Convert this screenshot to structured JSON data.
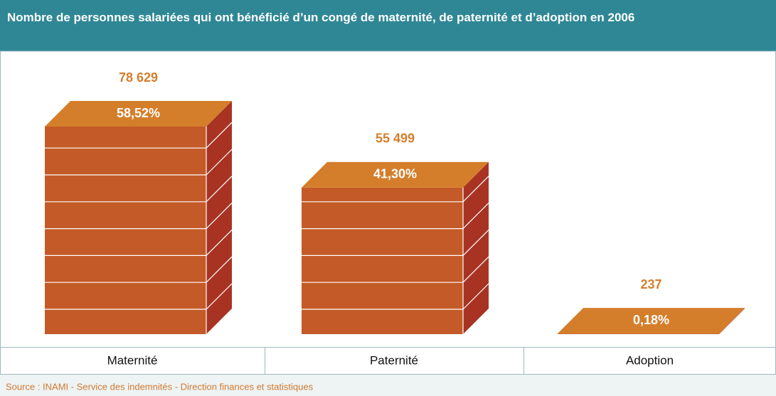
{
  "chart_data": {
    "type": "bar3d",
    "title": "Nombre de personnes salariées qui ont bénéficié d’un congé de maternité, de paternité et d’adoption en 2006",
    "categories": [
      "Maternité",
      "Paternité",
      "Adoption"
    ],
    "values": [
      78629,
      55499,
      237
    ],
    "value_labels": [
      "78 629",
      "55 499",
      "237"
    ],
    "shares": [
      58.52,
      41.3,
      0.18
    ],
    "share_labels": [
      "58,52%",
      "41,30%",
      "0,18%"
    ],
    "colors": {
      "front": "#c45a27",
      "top": "#d47e2b",
      "side": "#a83323"
    },
    "source": "Source : INAMI - Service des indemnités - Direction finances et statistiques"
  }
}
